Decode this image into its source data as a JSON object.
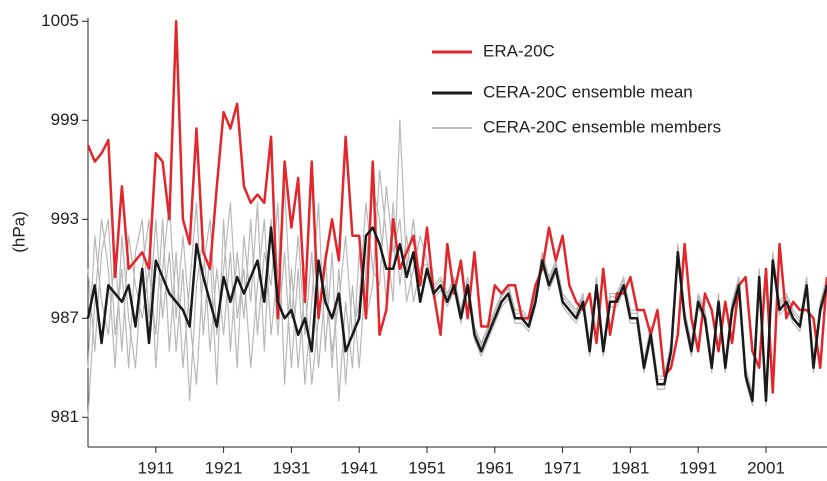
{
  "chart_data": {
    "type": "line",
    "y_label": "(hPa)",
    "xlim": [
      1901,
      2010
    ],
    "ylim": [
      979.2,
      1005.2
    ],
    "xticks": [
      1911,
      1921,
      1931,
      1941,
      1951,
      1961,
      1971,
      1981,
      1991,
      2001
    ],
    "yticks": [
      981,
      987,
      993,
      999,
      1005
    ],
    "legend": "upper right",
    "x": [
      1901,
      1902,
      1903,
      1904,
      1905,
      1906,
      1907,
      1908,
      1909,
      1910,
      1911,
      1912,
      1913,
      1914,
      1915,
      1916,
      1917,
      1918,
      1919,
      1920,
      1921,
      1922,
      1923,
      1924,
      1925,
      1926,
      1927,
      1928,
      1929,
      1930,
      1931,
      1932,
      1933,
      1934,
      1935,
      1936,
      1937,
      1938,
      1939,
      1940,
      1941,
      1942,
      1943,
      1944,
      1945,
      1946,
      1947,
      1948,
      1949,
      1950,
      1951,
      1952,
      1953,
      1954,
      1955,
      1956,
      1957,
      1958,
      1959,
      1960,
      1961,
      1962,
      1963,
      1964,
      1965,
      1966,
      1967,
      1968,
      1969,
      1970,
      1971,
      1972,
      1973,
      1974,
      1975,
      1976,
      1977,
      1978,
      1979,
      1980,
      1981,
      1982,
      1983,
      1984,
      1985,
      1986,
      1987,
      1988,
      1989,
      1990,
      1991,
      1992,
      1993,
      1994,
      1995,
      1996,
      1997,
      1998,
      1999,
      2000,
      2001,
      2002,
      2003,
      2004,
      2005,
      2006,
      2007,
      2008,
      2009,
      2010
    ],
    "series": [
      {
        "name": "ERA-20C",
        "color": "#e3262b",
        "width": 2.5,
        "values": [
          997.5,
          996.5,
          997,
          997.8,
          989.5,
          995,
          990,
          990.5,
          991,
          990,
          997,
          996.5,
          993,
          1005,
          993,
          991.5,
          998.5,
          991,
          990,
          995,
          999.5,
          998.5,
          1000,
          995,
          994,
          994.5,
          994,
          998,
          987,
          996.5,
          992.5,
          995.5,
          988,
          996.5,
          987,
          990.5,
          993,
          990.5,
          998,
          992,
          992,
          987,
          996.5,
          986,
          987.5,
          993,
          990,
          991,
          992,
          989,
          992.5,
          988.5,
          986,
          991.5,
          988.5,
          990.5,
          987,
          991,
          986.5,
          986.5,
          989,
          988.5,
          989,
          989,
          987,
          987,
          989,
          990,
          992.5,
          990.5,
          992,
          989,
          988,
          987.5,
          988.5,
          985.5,
          990,
          986,
          988.5,
          988.5,
          989.5,
          987.5,
          987.5,
          986,
          987.5,
          983.5,
          984,
          986,
          991.5,
          987,
          985,
          988.5,
          987.5,
          985,
          988,
          985.5,
          989,
          989.5,
          985,
          984,
          990,
          982.5,
          991.5,
          987,
          988,
          987.5,
          987.5,
          987,
          984,
          989.5
        ]
      },
      {
        "name": "CERA-20C ensemble mean",
        "color": "#1a1a1a",
        "width": 2.5,
        "values": [
          987,
          989,
          985.5,
          989,
          988.5,
          988,
          989,
          986.5,
          990,
          985.5,
          990.5,
          989.5,
          988.5,
          988,
          987.5,
          986.5,
          991.5,
          989.5,
          988,
          986.5,
          989.5,
          988,
          989.5,
          988.5,
          989.5,
          990.5,
          988,
          992.5,
          988,
          987,
          987.5,
          986,
          987,
          985,
          990.5,
          988,
          987,
          988.5,
          985,
          986,
          987,
          992,
          992.5,
          991.5,
          990,
          990,
          991.5,
          989.5,
          991,
          988,
          990,
          988.5,
          989,
          988,
          989,
          987,
          989,
          986,
          985,
          986,
          987,
          988,
          988.5,
          987,
          987,
          986.5,
          988,
          990.5,
          989,
          990,
          988,
          987.5,
          987,
          988,
          985,
          989,
          985,
          988,
          988,
          989,
          987,
          987,
          984,
          986,
          983,
          983,
          985,
          991,
          987,
          985,
          988,
          987,
          984,
          988,
          984,
          987.5,
          989,
          983.5,
          982,
          989.5,
          982,
          990.5,
          987.5,
          988,
          987,
          986.5,
          989,
          984,
          987.5,
          989
        ]
      },
      {
        "name": "CERA-20C ensemble members",
        "color": "#b8b8b8",
        "width": 1.2,
        "values": [
          [
            984,
            992,
            988,
            986,
            991,
            985,
            992,
            989,
            987,
            990,
            986,
            993,
            985,
            991,
            984,
            989,
            994,
            986,
            991,
            983,
            993,
            985,
            991,
            987,
            993,
            986,
            991,
            989,
            994,
            983,
            990,
            984,
            989,
            983,
            987,
            991,
            984,
            990,
            983,
            989,
            984,
            990,
            995,
            993,
            988,
            994,
            989,
            992,
            988,
            990,
            990.3,
            988.8,
            989.3,
            988.3,
            989.3,
            987.3,
            989.3,
            986.3,
            985.3,
            986.3,
            987.3,
            988.3,
            988.8,
            987.3,
            987.3,
            986.8,
            988.3,
            990.8,
            989.3,
            990.3,
            988.3,
            987.8,
            987.3,
            988.3,
            985.3,
            989.3,
            985.3,
            988.3,
            988.3,
            989.3,
            987.3,
            987.3,
            984.3,
            986.3,
            983.3,
            983.3,
            985.3,
            991.3,
            987.3,
            985.3,
            988.3,
            987.3,
            984.3,
            988.3,
            984.3,
            987.8,
            989.3,
            983.8,
            982.3,
            989.8,
            982.3,
            990.8,
            987.8,
            988.3,
            987.3,
            986.8,
            989.3,
            984.3,
            987.8,
            989.3
          ],
          [
            990,
            985,
            991,
            993,
            986,
            990,
            984,
            991,
            993,
            987,
            993,
            987,
            991,
            985,
            990,
            982,
            989,
            992,
            985,
            990,
            986,
            991,
            984,
            992,
            988,
            994,
            985,
            993,
            986,
            991,
            984,
            990,
            983,
            988,
            994,
            985,
            991,
            982,
            988,
            984,
            991,
            987,
            989,
            996,
            992,
            988,
            999,
            990,
            993,
            989,
            989.7,
            988.2,
            988.7,
            987.7,
            988.7,
            986.7,
            988.7,
            985.7,
            984.7,
            985.7,
            986.7,
            987.7,
            988.2,
            986.7,
            986.7,
            986.2,
            987.7,
            990.2,
            988.7,
            989.7,
            987.7,
            987.2,
            986.7,
            987.7,
            984.7,
            988.7,
            984.7,
            987.7,
            987.7,
            988.7,
            986.7,
            986.7,
            983.7,
            985.7,
            982.7,
            982.7,
            984.7,
            990.7,
            986.7,
            984.7,
            987.7,
            986.7,
            983.7,
            987.7,
            983.7,
            987.2,
            988.7,
            983.2,
            981.7,
            989.2,
            981.7,
            990.2,
            987.2,
            987.7,
            986.7,
            986.2,
            988.7,
            983.7,
            987.2,
            988.7
          ],
          [
            981,
            988,
            993,
            990,
            984,
            992,
            987,
            984,
            990,
            993,
            984,
            990,
            994,
            987,
            992,
            987,
            983,
            990,
            993,
            986,
            990,
            994,
            987,
            990,
            984,
            989,
            993,
            986,
            990,
            995,
            987,
            992,
            986,
            991,
            984,
            989,
            985,
            988,
            992,
            986,
            988,
            994,
            990,
            989,
            995,
            991,
            993,
            988,
            990,
            992,
            990.5,
            989,
            989.5,
            988.5,
            989.5,
            987.5,
            989.5,
            986.5,
            985.5,
            986.5,
            987.5,
            988.5,
            989,
            987.5,
            987.5,
            987,
            988.5,
            991,
            989.5,
            990.5,
            988.5,
            988,
            987.5,
            988.5,
            985.5,
            989.5,
            985.5,
            988.5,
            988.5,
            989.5,
            987.5,
            987.5,
            984.5,
            986.5,
            983.5,
            983.5,
            985.5,
            991.5,
            987.5,
            985.5,
            988.5,
            987.5,
            984.5,
            988.5,
            984.5,
            988,
            989.5,
            984,
            982.5,
            990,
            982.5,
            991,
            988,
            988.5,
            987.5,
            987,
            989.5,
            984.5,
            988,
            989.5
          ]
        ]
      }
    ]
  }
}
